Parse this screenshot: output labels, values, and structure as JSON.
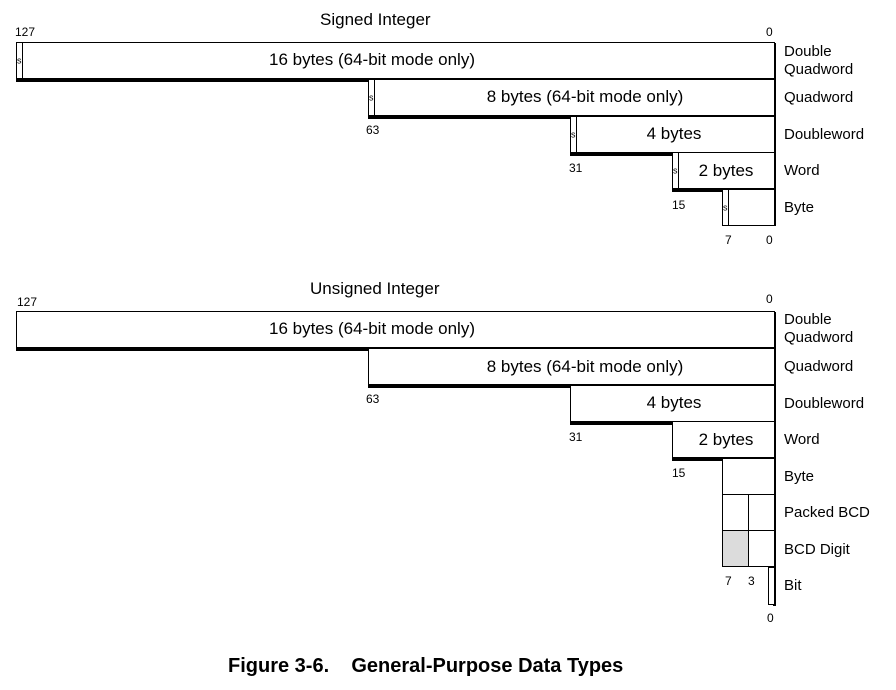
{
  "signed": {
    "title": "Signed Integer",
    "bit_127": "127",
    "bit_0_top": "0",
    "rows": [
      {
        "text": "16 bytes (64-bit mode only)",
        "label": "Double\nQuadword",
        "sign": "s"
      },
      {
        "text": "8 bytes (64-bit mode only)",
        "label": "Quadword",
        "sign": "s",
        "bit": "63"
      },
      {
        "text": "4 bytes",
        "label": "Doubleword",
        "sign": "s",
        "bit": "31"
      },
      {
        "text": "2 bytes",
        "label": "Word",
        "sign": "s",
        "bit": "15"
      },
      {
        "text": "",
        "label": "Byte",
        "sign": "s",
        "bit": "7"
      }
    ],
    "bit_0_bottom": "0"
  },
  "unsigned": {
    "title": "Unsigned Integer",
    "bit_127": "127",
    "bit_0_top": "0",
    "rows": [
      {
        "text": "16 bytes (64-bit mode only)",
        "label": "Double\nQuadword"
      },
      {
        "text": "8 bytes (64-bit mode only)",
        "label": "Quadword",
        "bit": "63"
      },
      {
        "text": "4 bytes",
        "label": "Doubleword",
        "bit": "31"
      },
      {
        "text": "2 bytes",
        "label": "Word",
        "bit": "15"
      },
      {
        "text": "",
        "label": "Byte"
      },
      {
        "text": "",
        "label": "Packed BCD"
      },
      {
        "text": "",
        "label": "BCD Digit"
      },
      {
        "text": "",
        "label": "Bit"
      }
    ],
    "bit_7": "7",
    "bit_3": "3",
    "bit_0_bottom": "0"
  },
  "caption": "Figure 3-6.    General-Purpose Data Types"
}
